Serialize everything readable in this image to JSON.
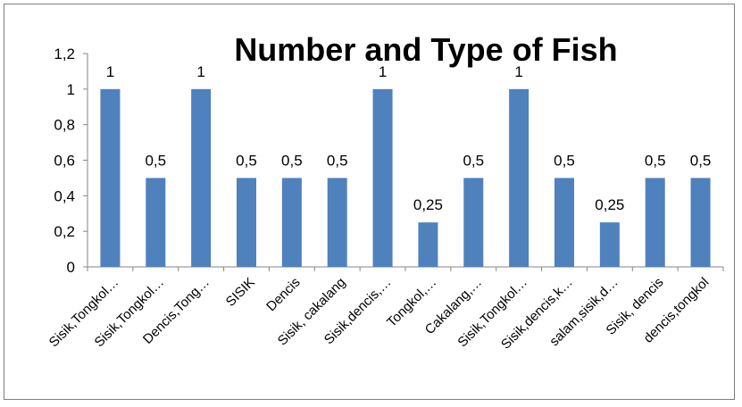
{
  "chart_data": {
    "type": "bar",
    "title": "Number and Type of Fish",
    "categories": [
      "Sisik,Tongkol…",
      "Sisik,Tongkol…",
      "Dencis,Tong…",
      "SISIK",
      "Dencis",
      "Sisik, cakalang",
      "Sisik,dencis,…",
      "Tongkol,…",
      "Cakalang,…",
      "Sisik,Tongkol…",
      "Sisik,dencis,k…",
      "salam,sisik,d…",
      "Sisik, dencis",
      "dencis,tongkol"
    ],
    "values": [
      1,
      0.5,
      1,
      0.5,
      0.5,
      0.5,
      1,
      0.25,
      0.5,
      1,
      0.5,
      0.25,
      0.5,
      0.5
    ],
    "data_labels": [
      "1",
      "0,5",
      "1",
      "0,5",
      "0,5",
      "0,5",
      "1",
      "0,25",
      "0,5",
      "1",
      "0,5",
      "0,25",
      "0,5",
      "0,5"
    ],
    "ylim": [
      0,
      1.2
    ],
    "yticks": [
      0,
      0.2,
      0.4,
      0.6,
      0.8,
      1,
      1.2
    ],
    "ytick_labels": [
      "0",
      "0,2",
      "0,4",
      "0,6",
      "0,8",
      "1",
      "1,2"
    ],
    "bar_color": "#4f81bd",
    "xlabel": "",
    "ylabel": "",
    "grid": false,
    "legend": false
  }
}
